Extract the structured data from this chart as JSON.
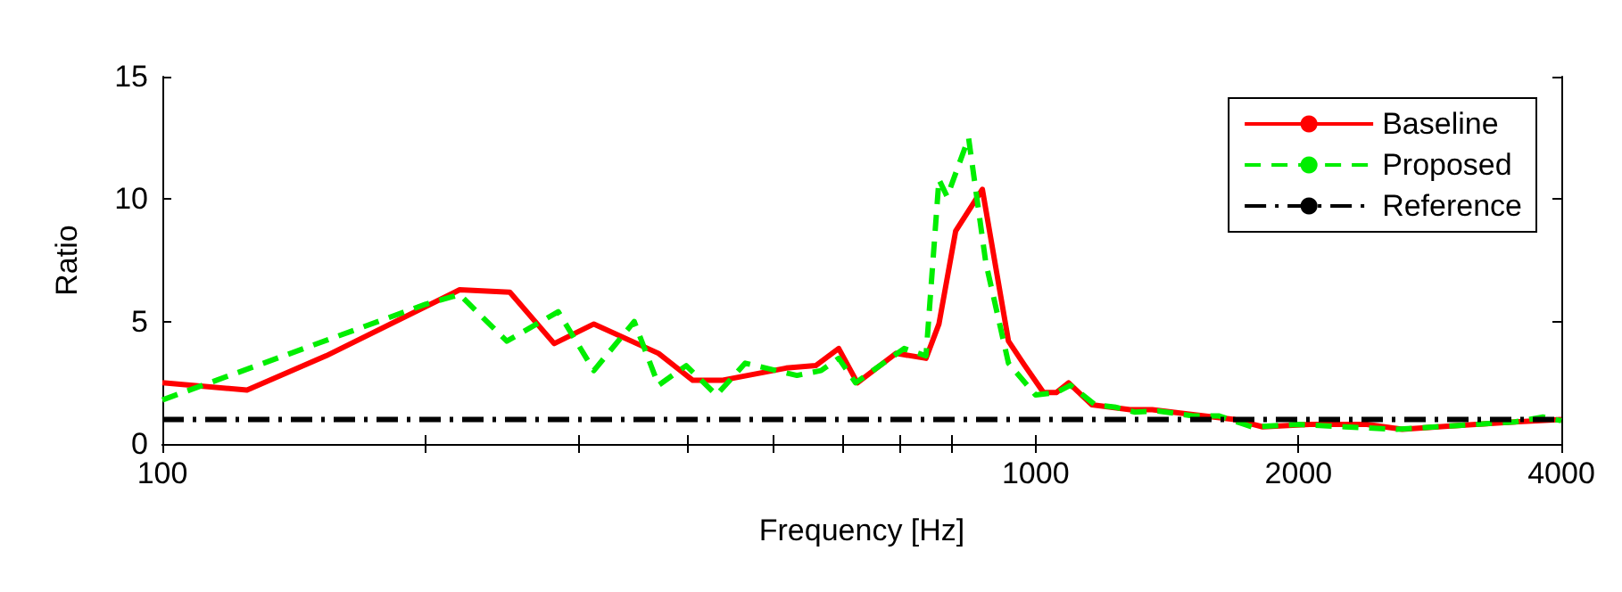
{
  "chart_data": {
    "type": "line",
    "xlabel": "Frequency [Hz]",
    "ylabel": "Ratio",
    "log": "x",
    "xlim": [
      100,
      4000
    ],
    "ylim": [
      0,
      15
    ],
    "xticks": [
      100,
      {
        "value": 200,
        "label": null
      },
      {
        "value": 300,
        "label": null
      },
      {
        "value": 400,
        "label": null
      },
      {
        "value": 500,
        "label": null
      },
      {
        "value": 600,
        "label": null
      },
      {
        "value": 700,
        "label": null
      },
      {
        "value": 800,
        "label": null
      },
      1000,
      2000,
      4000
    ],
    "yticks": [
      0,
      5,
      10,
      15
    ],
    "grid": false,
    "legend": "top right",
    "marker": "none",
    "series": [
      {
        "name": "Baseline",
        "color": "#ff0000",
        "line_style": "solid",
        "x": [
          100,
          125,
          154,
          219,
          250,
          281,
          312,
          370,
          405,
          437,
          518,
          560,
          595,
          625,
          692,
          749,
          775,
          810,
          869,
          931,
          972,
          1021,
          1056,
          1091,
          1160,
          1283,
          1360,
          1514,
          1690,
          1820,
          2060,
          2395,
          2630,
          3020,
          3540,
          4000
        ],
        "values": [
          2.5,
          2.2,
          3.6,
          6.3,
          6.2,
          4.1,
          4.9,
          3.7,
          2.6,
          2.6,
          3.1,
          3.2,
          3.9,
          2.5,
          3.7,
          3.5,
          4.9,
          8.7,
          10.4,
          4.2,
          3.2,
          2.1,
          2.1,
          2.5,
          1.6,
          1.4,
          1.4,
          1.2,
          1.0,
          0.7,
          0.8,
          0.8,
          0.6,
          0.75,
          0.9,
          1.0
        ]
      },
      {
        "name": "Proposed",
        "color": "#00ee00",
        "line_style": "dashed",
        "x": [
          100,
          200,
          219,
          248,
          284,
          312,
          347,
          370,
          398,
          431,
          465,
          533,
          568,
          595,
          622,
          707,
          749,
          775,
          792,
          838,
          877,
          931,
          1000,
          1056,
          1096,
          1170,
          1236,
          1300,
          1380,
          1514,
          1620,
          1770,
          2000,
          2260,
          2590,
          3020,
          3540,
          3810,
          4000
        ],
        "values": [
          1.8,
          5.7,
          6.1,
          4.2,
          5.4,
          3.0,
          5.0,
          2.4,
          3.2,
          2.0,
          3.3,
          2.8,
          3.0,
          3.5,
          2.5,
          3.9,
          3.6,
          10.8,
          10.1,
          12.5,
          7.4,
          3.3,
          2.0,
          2.1,
          2.4,
          1.6,
          1.5,
          1.3,
          1.35,
          1.15,
          1.15,
          0.7,
          0.8,
          0.7,
          0.6,
          0.75,
          0.9,
          1.1,
          0.95
        ]
      },
      {
        "name": "Reference",
        "color": "#000000",
        "line_style": "dashdot",
        "x": [
          100,
          4000
        ],
        "values": [
          1,
          1
        ]
      }
    ]
  }
}
